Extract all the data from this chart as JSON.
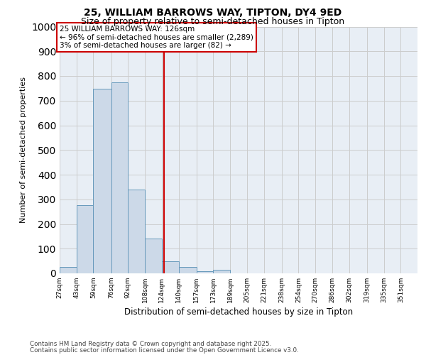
{
  "title_line1": "25, WILLIAM BARROWS WAY, TIPTON, DY4 9ED",
  "title_line2": "Size of property relative to semi-detached houses in Tipton",
  "xlabel": "Distribution of semi-detached houses by size in Tipton",
  "ylabel": "Number of semi-detached properties",
  "bin_labels": [
    "27sqm",
    "43sqm",
    "59sqm",
    "76sqm",
    "92sqm",
    "108sqm",
    "124sqm",
    "140sqm",
    "157sqm",
    "173sqm",
    "189sqm",
    "205sqm",
    "221sqm",
    "238sqm",
    "254sqm",
    "270sqm",
    "286sqm",
    "302sqm",
    "319sqm",
    "335sqm",
    "351sqm"
  ],
  "bin_edges": [
    27,
    43,
    59,
    76,
    92,
    108,
    124,
    140,
    157,
    173,
    189,
    205,
    221,
    238,
    254,
    270,
    286,
    302,
    319,
    335,
    351,
    367
  ],
  "bar_values": [
    25,
    275,
    748,
    775,
    340,
    140,
    50,
    25,
    10,
    15,
    0,
    0,
    0,
    0,
    0,
    0,
    0,
    0,
    0,
    0,
    0
  ],
  "bar_color": "#ccd9e8",
  "bar_edge_color": "#6699bb",
  "grid_color": "#cccccc",
  "bg_color": "#e8eef5",
  "property_sqm": 126,
  "property_line_color": "#cc0000",
  "annotation_text": "25 WILLIAM BARROWS WAY: 126sqm\n← 96% of semi-detached houses are smaller (2,289)\n3% of semi-detached houses are larger (82) →",
  "annotation_box_facecolor": "#ffffff",
  "annotation_box_edgecolor": "#cc0000",
  "ylim": [
    0,
    1000
  ],
  "yticks": [
    0,
    100,
    200,
    300,
    400,
    500,
    600,
    700,
    800,
    900,
    1000
  ],
  "footnote_line1": "Contains HM Land Registry data © Crown copyright and database right 2025.",
  "footnote_line2": "Contains public sector information licensed under the Open Government Licence v3.0."
}
